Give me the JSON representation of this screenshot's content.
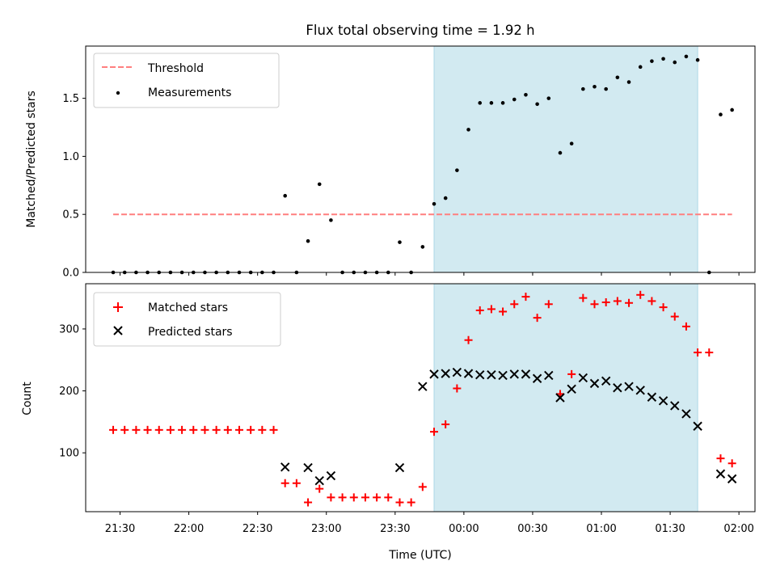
{
  "title": "Flux total observing time = 1.92 h",
  "xlabel": "Time (UTC)",
  "x_tick_labels": [
    "21:30",
    "22:00",
    "22:30",
    "23:00",
    "23:30",
    "00:00",
    "00:30",
    "01:00",
    "01:30",
    "02:00"
  ],
  "colors": {
    "threshold": "#ff7f7f",
    "measurements": "#000000",
    "matched": "#ff0000",
    "predicted": "#000000",
    "shade": "#add8e6"
  },
  "chart_data": [
    {
      "type": "scatter",
      "ylabel": "Matched/Predicted stars",
      "ylim": [
        0,
        1.95
      ],
      "y_ticks": [
        0.0,
        0.5,
        1.0,
        1.5
      ],
      "y_tick_labels": [
        "0.0",
        "0.5",
        "1.0",
        "1.5"
      ],
      "xlim": [
        "21:15",
        "02:07"
      ],
      "shaded_range": [
        "23:47",
        "01:42"
      ],
      "legend": {
        "placement": "upper-left",
        "entries": [
          "Threshold",
          "Measurements"
        ]
      },
      "threshold": {
        "name": "Threshold",
        "value": 0.5,
        "x_range": [
          "21:27",
          "01:57"
        ]
      },
      "series": [
        {
          "name": "Measurements",
          "x": [
            "21:27",
            "21:32",
            "21:37",
            "21:42",
            "21:47",
            "21:52",
            "21:57",
            "22:02",
            "22:07",
            "22:12",
            "22:17",
            "22:22",
            "22:27",
            "22:32",
            "22:37",
            "22:42",
            "22:47",
            "22:52",
            "22:57",
            "23:02",
            "23:07",
            "23:12",
            "23:17",
            "23:22",
            "23:27",
            "23:32",
            "23:37",
            "23:42",
            "23:47",
            "23:52",
            "23:57",
            "00:02",
            "00:07",
            "00:12",
            "00:17",
            "00:22",
            "00:27",
            "00:32",
            "00:37",
            "00:42",
            "00:47",
            "00:52",
            "00:57",
            "01:02",
            "01:07",
            "01:12",
            "01:17",
            "01:22",
            "01:27",
            "01:32",
            "01:37",
            "01:42",
            "01:47",
            "01:52",
            "01:57"
          ],
          "values": [
            0.0,
            0.0,
            0.0,
            0.0,
            0.0,
            0.0,
            0.0,
            0.0,
            0.0,
            0.0,
            0.0,
            0.0,
            0.0,
            0.0,
            0.0,
            0.66,
            0.0,
            0.27,
            0.76,
            0.45,
            0.0,
            0.0,
            0.0,
            0.0,
            0.0,
            0.26,
            0.0,
            0.22,
            0.59,
            0.64,
            0.88,
            1.23,
            1.46,
            1.46,
            1.46,
            1.49,
            1.53,
            1.45,
            1.5,
            1.03,
            1.11,
            1.58,
            1.6,
            1.58,
            1.68,
            1.64,
            1.77,
            1.82,
            1.84,
            1.81,
            1.86,
            1.83,
            0.0,
            1.36,
            1.4
          ]
        }
      ]
    },
    {
      "type": "scatter",
      "ylabel": "Count",
      "ylim": [
        5,
        373
      ],
      "y_ticks": [
        100,
        200,
        300
      ],
      "y_tick_labels": [
        "100",
        "200",
        "300"
      ],
      "xlim": [
        "21:15",
        "02:07"
      ],
      "shaded_range": [
        "23:47",
        "01:42"
      ],
      "legend": {
        "placement": "upper-left",
        "entries": [
          "Matched stars",
          "Predicted stars"
        ]
      },
      "series": [
        {
          "name": "Matched stars",
          "marker": "plus",
          "x": [
            "21:27",
            "21:32",
            "21:37",
            "21:42",
            "21:47",
            "21:52",
            "21:57",
            "22:02",
            "22:07",
            "22:12",
            "22:17",
            "22:22",
            "22:27",
            "22:32",
            "22:37",
            "22:42",
            "22:47",
            "22:52",
            "22:57",
            "23:02",
            "23:07",
            "23:12",
            "23:17",
            "23:22",
            "23:27",
            "23:32",
            "23:37",
            "23:42",
            "23:47",
            "23:52",
            "23:57",
            "00:02",
            "00:07",
            "00:12",
            "00:17",
            "00:22",
            "00:27",
            "00:32",
            "00:37",
            "00:42",
            "00:47",
            "00:52",
            "00:57",
            "01:02",
            "01:07",
            "01:12",
            "01:17",
            "01:22",
            "01:27",
            "01:32",
            "01:37",
            "01:42",
            "01:47",
            "01:52",
            "01:57"
          ],
          "values": [
            137,
            137,
            137,
            137,
            137,
            137,
            137,
            137,
            137,
            137,
            137,
            137,
            137,
            137,
            137,
            51,
            51,
            20,
            42,
            28,
            28,
            28,
            28,
            28,
            28,
            20,
            20,
            45,
            134,
            146,
            204,
            282,
            330,
            332,
            328,
            340,
            352,
            318,
            340,
            195,
            227,
            350,
            340,
            343,
            345,
            342,
            355,
            345,
            335,
            320,
            304,
            262,
            262,
            91,
            83
          ]
        },
        {
          "name": "Predicted stars",
          "marker": "x",
          "x": [
            "22:42",
            "22:52",
            "22:57",
            "23:02",
            "23:32",
            "23:42",
            "23:47",
            "23:52",
            "23:57",
            "00:02",
            "00:07",
            "00:12",
            "00:17",
            "00:22",
            "00:27",
            "00:32",
            "00:37",
            "00:42",
            "00:47",
            "00:52",
            "00:57",
            "01:02",
            "01:07",
            "01:12",
            "01:17",
            "01:22",
            "01:27",
            "01:32",
            "01:37",
            "01:42",
            "01:52",
            "01:57"
          ],
          "values": [
            77,
            76,
            55,
            63,
            76,
            207,
            227,
            228,
            230,
            228,
            226,
            226,
            225,
            227,
            227,
            220,
            225,
            189,
            203,
            221,
            212,
            216,
            205,
            207,
            201,
            190,
            184,
            176,
            163,
            143,
            66,
            58
          ]
        }
      ]
    }
  ]
}
